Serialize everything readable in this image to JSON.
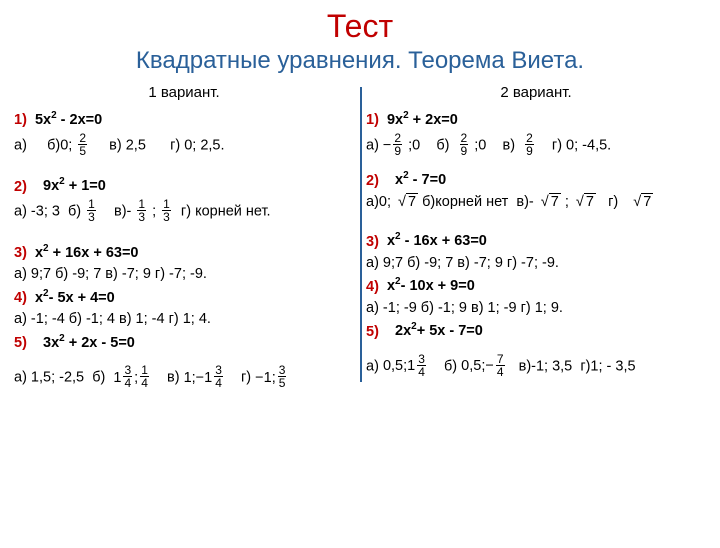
{
  "title": "Тест",
  "subtitle": "Квадратные уравнения. Теорема Виета.",
  "variant1_title": "1 вариант.",
  "variant2_title": "2 вариант.",
  "v1": {
    "q1": "5х2 - 2х=0",
    "q1a_a": "а)",
    "q1a_b": "б)0;",
    "q1a_c": "в) 2,5",
    "q1a_d": "г) 0; 2,5.",
    "q2": "9х2 + 1=0",
    "q2a_a": "а) -3; 3",
    "q2a_b": "б)",
    "q2a_c": "в)-",
    "q2a_c2": ";",
    "q2a_d": "г) корней нет.",
    "q3": "х2 + 16х + 63=0",
    "q3a": "а) 9;7  б) -9; 7   в) -7; 9   г) -7; -9.",
    "q4": "х2- 5х + 4=0",
    "q4a": "а) -1; -4   б) -1; 4  в) 1; -4  г) 1; 4.",
    "q5": "3х2 + 2х - 5=0",
    "q5a_a": "а) 1,5; -2,5",
    "q5a_b": "б)",
    "q5a_c": "в)",
    "q5a_d": "г)"
  },
  "v2": {
    "q1": "9х2 + 2х=0",
    "q1a_a": "а)",
    "q1a_a2": ";0",
    "q1a_b": "б)",
    "q1a_b2": ";0",
    "q1a_c": "в)",
    "q1a_d": "г) 0; -4,5.",
    "q2": "х2 - 7=0",
    "q2a_a": "а)0;",
    "q2a_b": "б)корней нет",
    "q2a_c": "в)-",
    "q2a_c2": ";",
    "q2a_d": "г)",
    "q3": "х2 - 16х + 63=0",
    "q3a": "а) 9;7  б) -9; 7   в) -7; 9   г) -7; -9.",
    "q4": "х2- 10х + 9=0",
    "q4a": "а) -1; -9   б) -1; 9  в) 1; -9  г) 1; 9.",
    "q5": "2х2+ 5х - 7=0",
    "q5a_a": "а)",
    "q5a_b": "б)",
    "q5a_c": "в)-1; 3,5",
    "q5a_d": "г)1; - 3,5"
  },
  "fracs": {
    "two_fifths": {
      "n": "2",
      "d": "5"
    },
    "one_third": {
      "n": "1",
      "d": "3"
    },
    "neg_two_ninths": {
      "n": "2",
      "d": "9"
    },
    "one_three_quarter": {
      "n": "3",
      "d": "4"
    },
    "one_fourth": {
      "n": "1",
      "d": "4"
    },
    "three_fifths": {
      "n": "3",
      "d": "5"
    }
  },
  "colors": {
    "title": "#c00000",
    "subtitle": "#2a6099",
    "text": "#000000",
    "background": "#ffffff"
  }
}
